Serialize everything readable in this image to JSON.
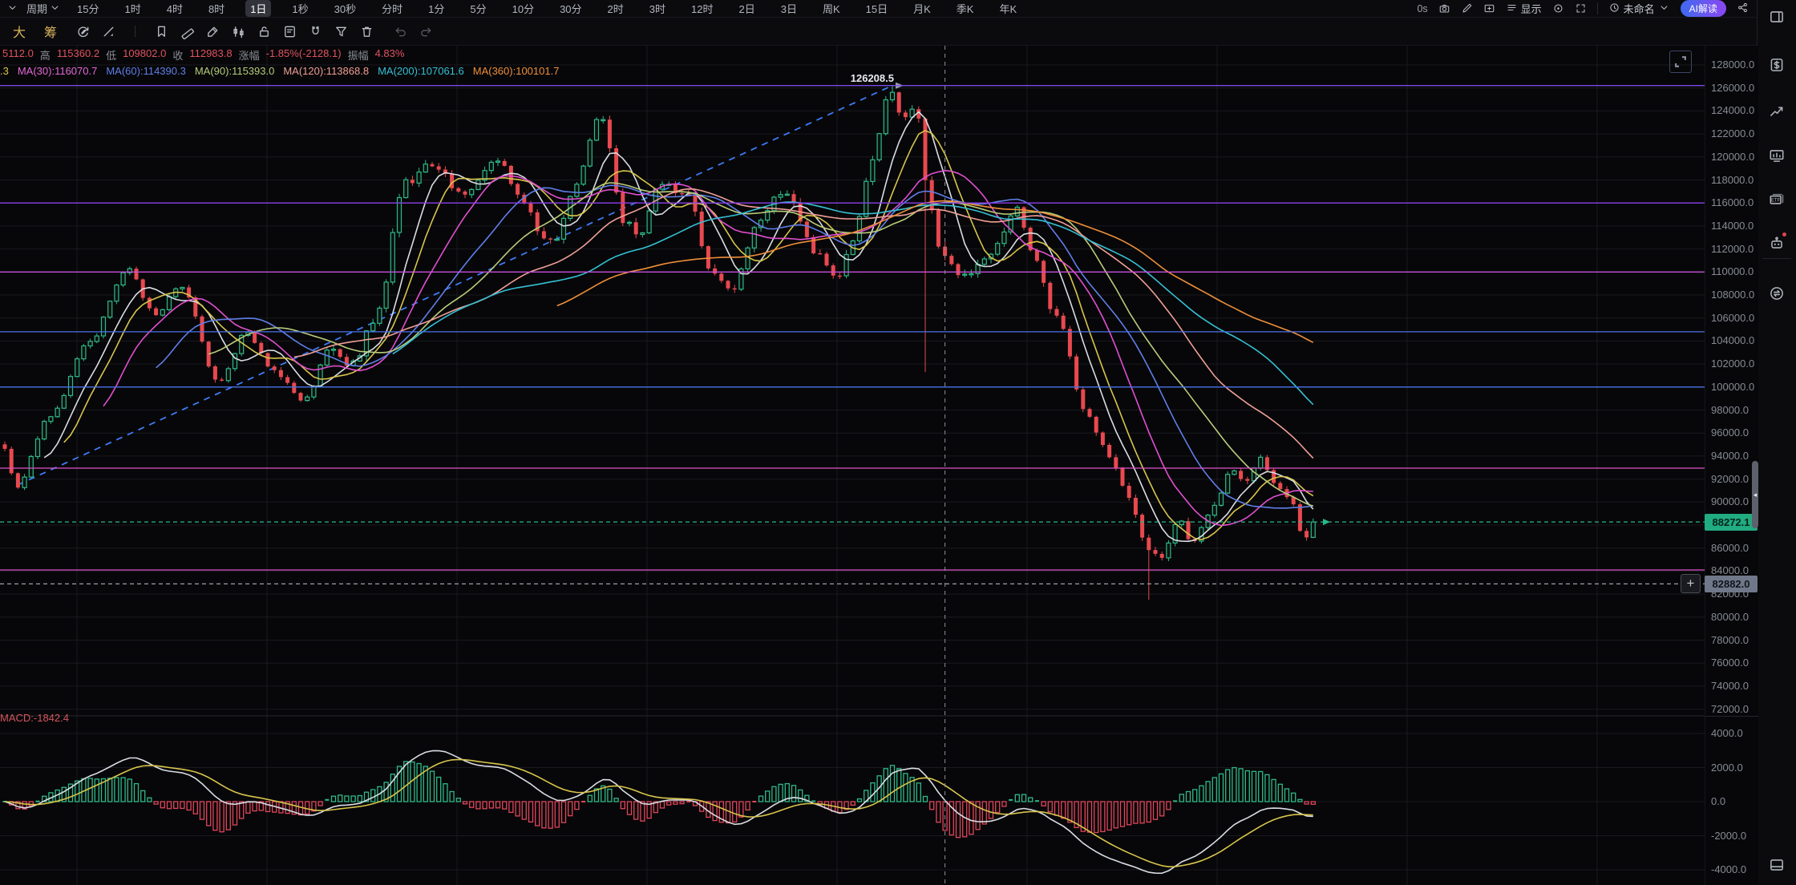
{
  "toolbar_top": {
    "collapse_icon": "chevron-down-icon",
    "period_label": "周期",
    "timeframes": [
      "15分",
      "1时",
      "4时",
      "8时",
      "1日",
      "1秒",
      "30秒",
      "分时",
      "1分",
      "5分",
      "10分",
      "30分",
      "2时",
      "3时",
      "12时",
      "2日",
      "3日",
      "周K",
      "15日",
      "月K",
      "季K",
      "年K"
    ],
    "active_timeframe": "1日",
    "countdown": "0s",
    "right_icons_a": [
      "camera-icon",
      "edit-pencil-icon",
      "add-pane-icon"
    ],
    "display_menu": {
      "icon": "list-menu-icon",
      "label": "显示"
    },
    "right_icons_b": [
      "target-icon",
      "fullscreen-icon"
    ],
    "layout_menu": {
      "icon": "clock-icon",
      "label": "未命名",
      "chevron": "chevron-down-icon"
    },
    "ai_button_label": "AI解读",
    "share_icon": "share-icon"
  },
  "toolbar_draw": {
    "text_tools": [
      {
        "label": "大"
      },
      {
        "label": "筹"
      }
    ],
    "icons_group1": [
      "replay-edit-icon",
      "cursor-line-icon"
    ],
    "icons_group2": [
      "bookmark-icon",
      "ruler-icon",
      "brush-icon",
      "pattern-icon",
      "unlock-icon",
      "note-icon",
      "magnet-icon",
      "funnel-icon",
      "trash-icon"
    ],
    "icons_group3": [
      "undo-icon",
      "redo-icon"
    ]
  },
  "sidebar": {
    "top_icon": "panel-right-icon",
    "icons": [
      "fund-dollar-icon",
      "trend-up-icon",
      "chart-monitor-icon",
      "etf-icon",
      "ai-robot-icon"
    ],
    "lower_icons": [
      "swap-icon"
    ],
    "bottom_icon": "layout-bottom-icon"
  },
  "overlay": {
    "ohlc_segments": [
      {
        "text": "5112.0",
        "type": "value"
      },
      {
        "text": "高",
        "type": "label"
      },
      {
        "text": "115360.2",
        "type": "value"
      },
      {
        "text": "低",
        "type": "label"
      },
      {
        "text": "109802.0",
        "type": "value"
      },
      {
        "text": "收",
        "type": "label"
      },
      {
        "text": "112983.8",
        "type": "value"
      },
      {
        "text": "涨幅",
        "type": "label"
      },
      {
        "text": "-1.85%(-2128.1)",
        "type": "value"
      },
      {
        "text": "振幅",
        "type": "label"
      },
      {
        "text": "4.83%",
        "type": "value"
      }
    ],
    "ma_items": [
      {
        "text": ".3",
        "color": "#d8c54b"
      },
      {
        "text": "MA(30):116070.7",
        "color": "#e667d8"
      },
      {
        "text": "MA(60):114390.3",
        "color": "#5f7fe8"
      },
      {
        "text": "MA(90):115393.0",
        "color": "#b9cc7a"
      },
      {
        "text": "MA(120):113868.8",
        "color": "#ef9f96"
      },
      {
        "text": "MA(200):107061.6",
        "color": "#35c0d4"
      },
      {
        "text": "MA(360):100101.7",
        "color": "#ef8f3a"
      }
    ],
    "macd_label": "MACD:-1842.4",
    "peak_label": "126208.5",
    "price_badge": "88272.1",
    "order_badge": "82882.0",
    "order_add_button": "+"
  },
  "chart_data": {
    "type": "candlestick",
    "panes": [
      "price",
      "MACD"
    ],
    "price_axis": {
      "max": 128000,
      "min": 72000,
      "step": 2000
    },
    "y_axis_ticks": [
      "128000.0",
      "126000.0",
      "124000.0",
      "122000.0",
      "120000.0",
      "118000.0",
      "116000.0",
      "114000.0",
      "112000.0",
      "110000.0",
      "108000.0",
      "106000.0",
      "104000.0",
      "102000.0",
      "100000.0",
      "98000.0",
      "96000.0",
      "94000.0",
      "92000.0",
      "90000.0",
      "88000.0",
      "86000.0",
      "84000.0",
      "82000.0",
      "80000.0",
      "78000.0",
      "76000.0",
      "74000.0",
      "72000.0"
    ],
    "macd_axis_ticks": [
      "4000.0",
      "2000.0",
      "0.0",
      "-2000.0",
      "-4000.0"
    ],
    "current_price": 88272.1,
    "order_price": 82882.0,
    "session_high": 126208.5,
    "macd_value": -1842.4,
    "crosshair_ohlc": {
      "open_fragment": "5112.0",
      "high": 115360.2,
      "low": 109802.0,
      "close": 112983.8,
      "change_pct": "-1.85%",
      "change_abs": -2128.1,
      "amplitude_pct": "4.83%"
    },
    "ma_values": {
      "MA30": 116070.7,
      "MA60": 114390.3,
      "MA90": 115393.0,
      "MA120": 113868.8,
      "MA200": 107061.6,
      "MA360": 100101.7
    },
    "levels": [
      {
        "price": 126208.5,
        "color": "#7b4ae8",
        "style": "solid"
      },
      {
        "price": 116000,
        "color": "#8a3fe8",
        "style": "solid"
      },
      {
        "price": 110000,
        "color": "#c44fd9",
        "style": "solid"
      },
      {
        "price": 104800,
        "color": "#4a72e8",
        "style": "solid"
      },
      {
        "price": 100000,
        "color": "#4a72e8",
        "style": "solid"
      },
      {
        "price": 92950,
        "color": "#e052cc",
        "style": "solid"
      },
      {
        "price": 84100,
        "color": "#e052cc",
        "style": "solid"
      },
      {
        "price": 88272.1,
        "color": "#2bb787",
        "style": "dashed"
      },
      {
        "price": 82882.0,
        "color": "#9aa0ad",
        "style": "dashed"
      }
    ],
    "trendline": {
      "from_index": 2,
      "from_price": 91500,
      "to_index": 135,
      "to_price": 126208.5,
      "color": "#3d7bf5",
      "style": "dashed"
    },
    "crosshair_index": 143,
    "candles": {
      "count": 200,
      "anchors": [
        [
          0,
          95000
        ],
        [
          2,
          91300
        ],
        [
          7,
          97200
        ],
        [
          13,
          103800
        ],
        [
          19,
          110300
        ],
        [
          23,
          106300
        ],
        [
          27,
          108800
        ],
        [
          33,
          100300
        ],
        [
          37,
          104800
        ],
        [
          41,
          101500
        ],
        [
          46,
          98800
        ],
        [
          50,
          103600
        ],
        [
          53,
          101900
        ],
        [
          57,
          106300
        ],
        [
          61,
          117600
        ],
        [
          65,
          119300
        ],
        [
          70,
          117000
        ],
        [
          75,
          119800
        ],
        [
          80,
          115600
        ],
        [
          82,
          113000
        ],
        [
          84,
          112600
        ],
        [
          87,
          117600
        ],
        [
          91,
          123800
        ],
        [
          92,
          121800
        ],
        [
          94,
          114600
        ],
        [
          97,
          113100
        ],
        [
          100,
          117800
        ],
        [
          104,
          116600
        ],
        [
          108,
          109900
        ],
        [
          111,
          108500
        ],
        [
          115,
          114600
        ],
        [
          119,
          117200
        ],
        [
          124,
          111400
        ],
        [
          127,
          109200
        ],
        [
          129,
          112100
        ],
        [
          132,
          119200
        ],
        [
          135,
          125600
        ],
        [
          137,
          123200
        ],
        [
          139,
          124300
        ],
        [
          141,
          115500
        ],
        [
          143,
          111200
        ],
        [
          146,
          109600
        ],
        [
          149,
          111000
        ],
        [
          152,
          112900
        ],
        [
          154,
          115600
        ],
        [
          157,
          111300
        ],
        [
          160,
          106400
        ],
        [
          165,
          97400
        ],
        [
          168,
          94300
        ],
        [
          171,
          90800
        ],
        [
          174,
          86200
        ],
        [
          176,
          85000
        ],
        [
          179,
          88400
        ],
        [
          181,
          86200
        ],
        [
          184,
          89600
        ],
        [
          187,
          92900
        ],
        [
          189,
          91400
        ],
        [
          191,
          93900
        ],
        [
          194,
          91100
        ],
        [
          196,
          90300
        ],
        [
          198,
          86600
        ],
        [
          199,
          88100
        ]
      ],
      "forced_high": [
        [
          135,
          126208.5
        ]
      ],
      "forced_low": [
        [
          140,
          101300
        ],
        [
          174,
          81500
        ]
      ],
      "last_close": 88272.1
    },
    "ma_lines": [
      {
        "window": 7,
        "color": "#d9dde3"
      },
      {
        "window": 10,
        "color": "#d8c54b"
      },
      {
        "window": 16,
        "color": "#e14fd0"
      },
      {
        "window": 24,
        "color": "#5f7fe8"
      },
      {
        "window": 32,
        "color": "#b9cc7a"
      },
      {
        "window": 45,
        "color": "#ef9f96"
      },
      {
        "window": 60,
        "color": "#35c0d4"
      },
      {
        "window": 85,
        "color": "#ef8f3a"
      }
    ],
    "colors": {
      "up": "#2fb987",
      "down": "#e8494f",
      "hist_up": "#2fb987",
      "hist_down": "#e0465a",
      "macd_dif": "#d9dde3",
      "macd_dea": "#d8c54b",
      "grid": "#191a1f",
      "crosshair": "#8b8f99",
      "badge_red": "#e0454f"
    }
  }
}
